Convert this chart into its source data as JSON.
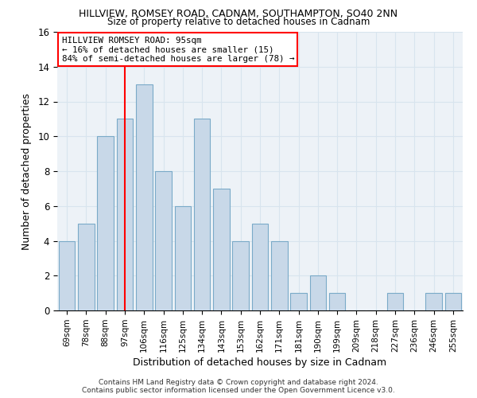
{
  "title1": "HILLVIEW, ROMSEY ROAD, CADNAM, SOUTHAMPTON, SO40 2NN",
  "title2": "Size of property relative to detached houses in Cadnam",
  "xlabel": "Distribution of detached houses by size in Cadnam",
  "ylabel": "Number of detached properties",
  "categories": [
    "69sqm",
    "78sqm",
    "88sqm",
    "97sqm",
    "106sqm",
    "116sqm",
    "125sqm",
    "134sqm",
    "143sqm",
    "153sqm",
    "162sqm",
    "171sqm",
    "181sqm",
    "190sqm",
    "199sqm",
    "209sqm",
    "218sqm",
    "227sqm",
    "236sqm",
    "246sqm",
    "255sqm"
  ],
  "values": [
    4,
    5,
    10,
    11,
    13,
    8,
    6,
    11,
    7,
    4,
    5,
    4,
    1,
    2,
    1,
    0,
    0,
    1,
    0,
    1,
    1
  ],
  "bar_color": "#c8d8e8",
  "bar_edge_color": "#7aaac8",
  "grid_color": "#d8e4ee",
  "background_color": "#edf2f7",
  "annotation_text": "HILLVIEW ROMSEY ROAD: 95sqm\n← 16% of detached houses are smaller (15)\n84% of semi-detached houses are larger (78) →",
  "redline_x": 3,
  "ylim": [
    0,
    16
  ],
  "yticks": [
    0,
    2,
    4,
    6,
    8,
    10,
    12,
    14,
    16
  ],
  "footer1": "Contains HM Land Registry data © Crown copyright and database right 2024.",
  "footer2": "Contains public sector information licensed under the Open Government Licence v3.0."
}
